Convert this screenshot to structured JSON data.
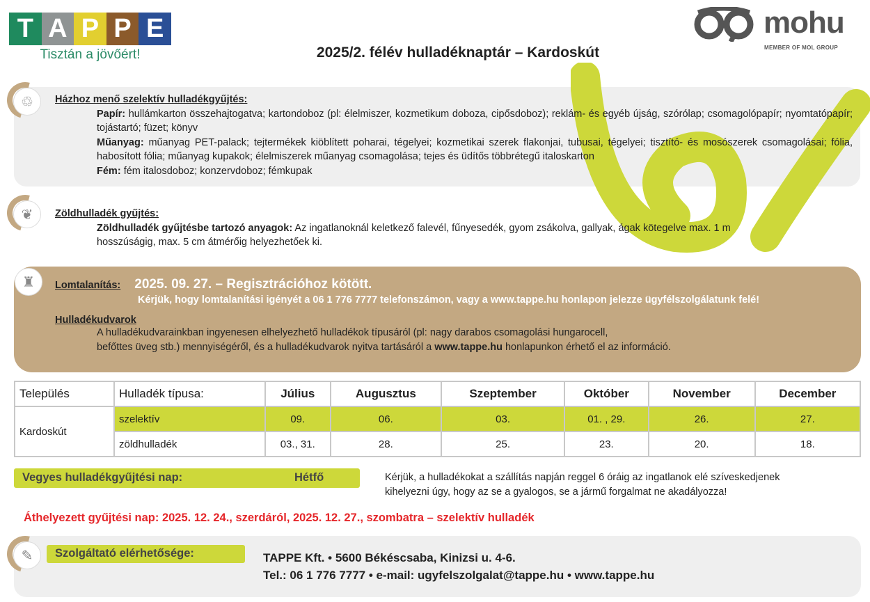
{
  "header": {
    "tappe_letters": [
      "T",
      "A",
      "P",
      "P",
      "E"
    ],
    "tappe_colors": [
      "#1f8a5e",
      "#8f9494",
      "#e2cf30",
      "#8b5a2b",
      "#2a4f96"
    ],
    "tappe_tagline": "Tisztán a jövőért!",
    "title": "2025/2.  félév hulladéknaptár – Kardoskút",
    "mohu_name": "mohu",
    "mohu_sub": "MEMBER OF MOL GROUP"
  },
  "colors": {
    "accent_green": "#cdd83a",
    "tan": "#c3a882",
    "gray_panel": "#efefef",
    "alert_red": "#e5262a"
  },
  "selective": {
    "icon": "recycle-icon",
    "heading": "Házhoz menő szelektív hulladékgyűjtés:",
    "items": [
      {
        "label": "Papír:",
        "text": "hullámkarton összehajtogatva; kartondoboz (pl: élelmiszer, kozmetikum doboza, cipősdoboz); reklám- és egyéb újság, szórólap;  csomagolópapír; nyomtatópapír; tojástartó; füzet; könyv"
      },
      {
        "label": "Műanyag:",
        "text": "műanyag PET-palack; tejtermékek kiöblített poharai, tégelyei; kozmetikai szerek flakonjai, tubusai, tégelyei; tisztító- és mosószerek csomagolásai; fólia, habosított fólia; műanyag kupakok; élelmiszerek műanyag csomagolása; tejes és üdítős többrétegű italoskarton"
      },
      {
        "label": "Fém:",
        "text": "fém italosdoboz; konzervdoboz; fémkupak"
      }
    ]
  },
  "green": {
    "icon": "leaf-icon",
    "heading": "Zöldhulladék gyűjtés:",
    "label": "Zöldhulladék gyűjtésbe tartozó anyagok:",
    "text": "Az ingatlanoknál keletkező falevél, fűnyesedék, gyom zsákolva, gallyak, ágak kötegelve max. 1 m hosszúságig, max. 5 cm átmérőig helyezhetőek ki."
  },
  "bulky": {
    "icon": "chair-icon",
    "heading": "Lomtalanítás:",
    "date": "2025. 09. 27. – Regisztrációhoz kötött.",
    "note": "Kérjük, hogy lomtalanítási igényét a 06 1 776 7777 telefonszámon, vagy a www.tappe.hu honlapon jelezze ügyfélszolgálatunk felé!",
    "yards_heading": "Hulladékudvarok",
    "yards_text1": "A hulladékudvarainkban ingyenesen elhelyezhető hulladékok típusáról (pl: nagy darabos csomagolási hungarocell,",
    "yards_text2a": "befőttes üveg stb.) mennyiségéről, és a hulladékudvarok nyitva tartásáról a ",
    "yards_link": "www.tappe.hu",
    "yards_text2b": " honlapunkon érhető el az információ."
  },
  "schedule": {
    "headers": [
      "Település",
      "Hulladék típusa:",
      "Július",
      "Augusztus",
      "Szeptember",
      "Október",
      "November",
      "December"
    ],
    "settlement": "Kardoskút",
    "rows": [
      {
        "type": "szelektív",
        "dates": [
          "09.",
          "06.",
          "03.",
          "01. , 29.",
          "26.",
          "27."
        ]
      },
      {
        "type": "zöldhulladék",
        "dates": [
          "03., 31.",
          "28.",
          "25.",
          "23.",
          "20.",
          "18."
        ]
      }
    ]
  },
  "mixed": {
    "label": "Vegyes hulladékgyűjtési nap:",
    "day": "Hétfő",
    "note": "Kérjük, a hulladékokat a szállítás napján reggel 6 óráig az ingatlanok elé szíveskedjenek kihelyezni úgy, hogy az se a gyalogos, se a jármű forgalmat ne akadályozza!"
  },
  "moved": "Áthelyezett gyűjtési nap: 2025. 12. 24., szerdáról, 2025. 12. 27., szombatra – szelektív hulladék",
  "contact": {
    "icon": "edit-icon",
    "label": "Szolgáltató elérhetősége:",
    "line1": "TAPPE Kft. • 5600 Békéscsaba, Kinizsi u. 4-6.",
    "line2": "Tel.: 06 1 776 7777 • e-mail: ugyfelszolgalat@tappe.hu • www.tappe.hu"
  }
}
